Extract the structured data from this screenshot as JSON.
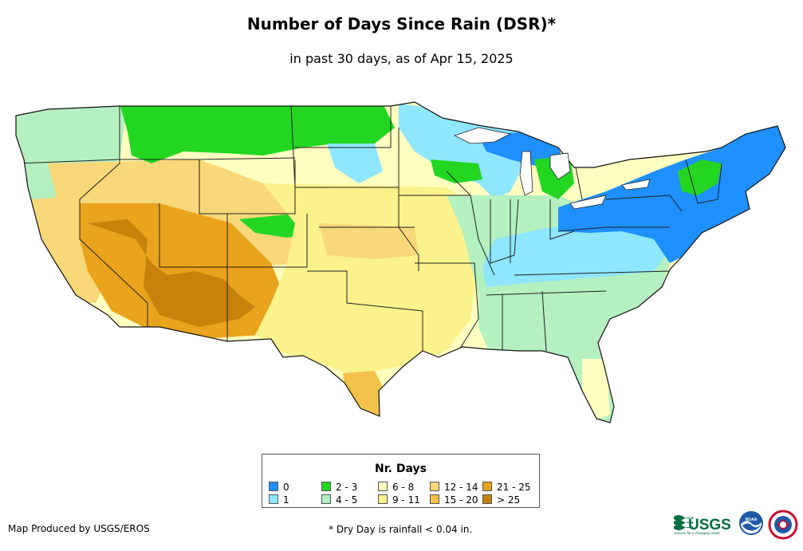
{
  "title": "Number of Days Since Rain (DSR)*",
  "subtitle": "in past 30 days, as of Apr 15, 2025",
  "legend": {
    "title": "Nr. Days",
    "items": [
      {
        "label": "0",
        "color": "#1e90ff"
      },
      {
        "label": "1",
        "color": "#8ee6ff"
      },
      {
        "label": "2 - 3",
        "color": "#22d622"
      },
      {
        "label": "4 - 5",
        "color": "#b4f0c0"
      },
      {
        "label": "6 - 8",
        "color": "#ffffc0"
      },
      {
        "label": "9 - 11",
        "color": "#fbf28c"
      },
      {
        "label": "12 - 14",
        "color": "#f8d878"
      },
      {
        "label": "15 - 20",
        "color": "#f4c24a"
      },
      {
        "label": "21 - 25",
        "color": "#eaa31c"
      },
      {
        "label": "> 25",
        "color": "#c7820c"
      }
    ]
  },
  "credit": "Map Produced by USGS/EROS",
  "footnote": "* Dry Day is rainfall < 0.04 in.",
  "logos": {
    "usgs": "USGS",
    "usgs_tagline": "science for a changing world",
    "noaa": "NOAA"
  }
}
